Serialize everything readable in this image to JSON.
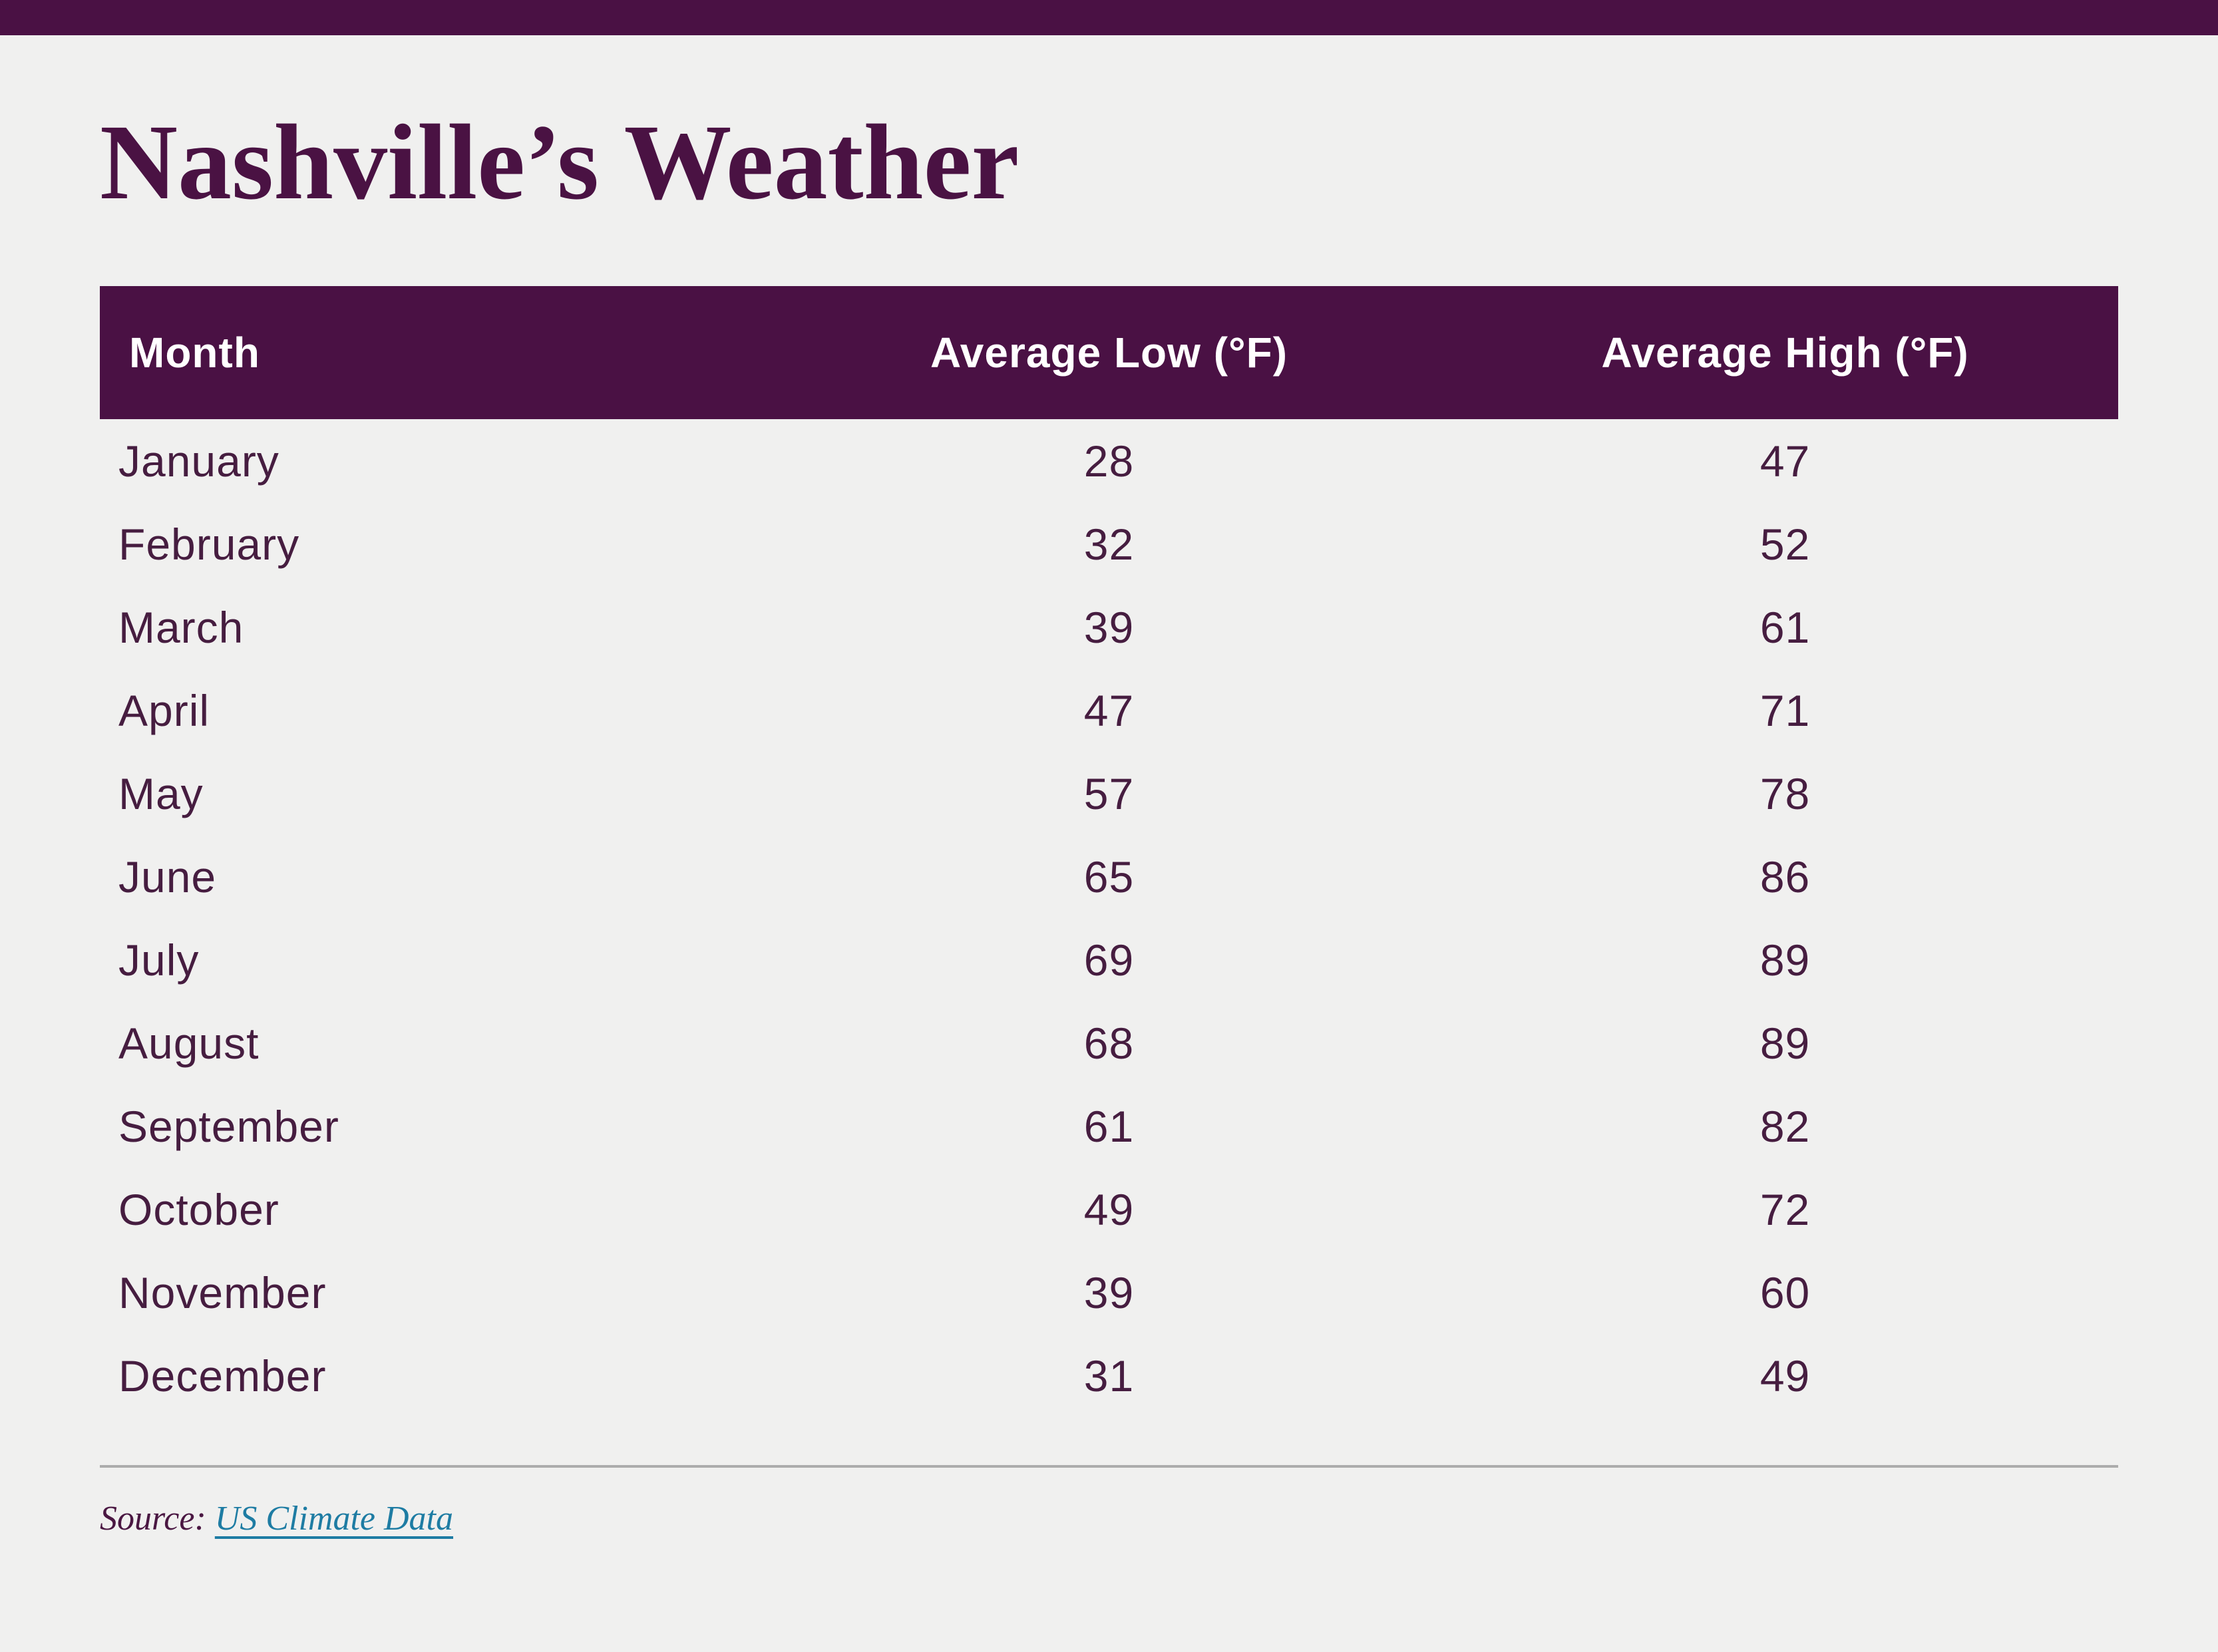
{
  "page": {
    "background_color": "#f0f0ef",
    "accent_color": "#4a1144"
  },
  "title": "Nashville’s Weather",
  "table": {
    "columns": [
      "Month",
      "Average Low (°F)",
      "Average High (°F)"
    ],
    "rows": [
      {
        "month": "January",
        "low": "28",
        "high": "47"
      },
      {
        "month": "February",
        "low": "32",
        "high": "52"
      },
      {
        "month": "March",
        "low": "39",
        "high": "61"
      },
      {
        "month": "April",
        "low": "47",
        "high": "71"
      },
      {
        "month": "May",
        "low": "57",
        "high": "78"
      },
      {
        "month": "June",
        "low": "65",
        "high": "86"
      },
      {
        "month": "July",
        "low": "69",
        "high": "89"
      },
      {
        "month": "August",
        "low": "68",
        "high": "89"
      },
      {
        "month": "September",
        "low": "61",
        "high": "82"
      },
      {
        "month": "October",
        "low": "49",
        "high": "72"
      },
      {
        "month": "November",
        "low": "39",
        "high": "60"
      },
      {
        "month": "December",
        "low": "31",
        "high": "49"
      }
    ]
  },
  "source": {
    "label": "Source:",
    "link_text": "US Climate Data",
    "link_color": "#1e7ca3",
    "divider_color": "#acacac"
  },
  "chart_data": {
    "type": "table",
    "title": "Nashville’s Weather",
    "categories": [
      "January",
      "February",
      "March",
      "April",
      "May",
      "June",
      "July",
      "August",
      "September",
      "October",
      "November",
      "December"
    ],
    "series": [
      {
        "name": "Average Low (°F)",
        "values": [
          28,
          32,
          39,
          47,
          57,
          65,
          69,
          68,
          61,
          49,
          39,
          31
        ]
      },
      {
        "name": "Average High (°F)",
        "values": [
          47,
          52,
          61,
          71,
          78,
          86,
          89,
          89,
          82,
          72,
          60,
          49
        ]
      }
    ],
    "source": "US Climate Data",
    "layout": {
      "header_bg": "#4a1144",
      "header_text": "#ffffff",
      "body_text": "#461d40",
      "grid": false
    }
  }
}
